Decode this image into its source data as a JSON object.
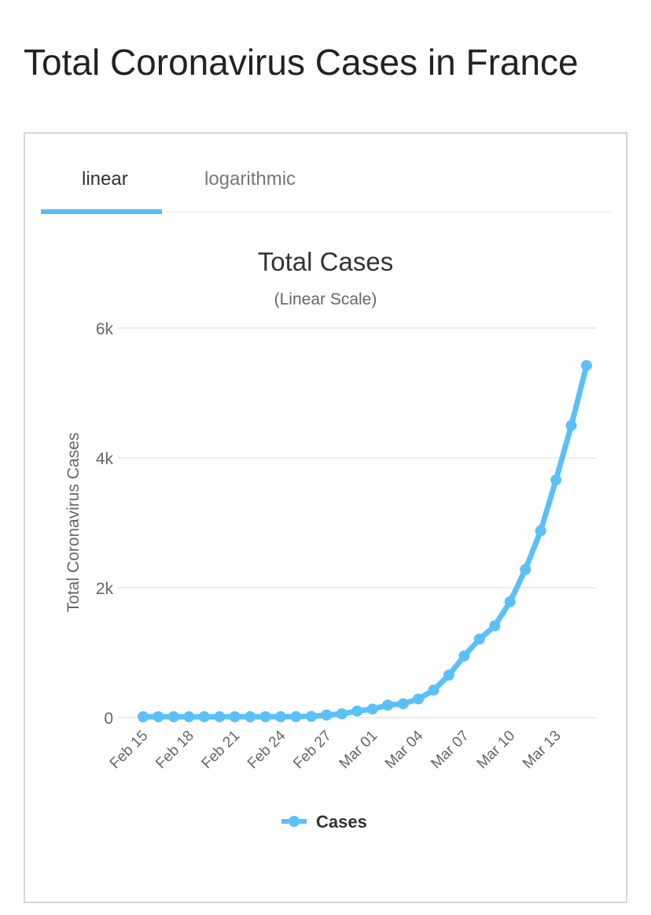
{
  "page": {
    "title": "Total Coronavirus Cases in France"
  },
  "tabs": {
    "linear": "linear",
    "logarithmic": "logarithmic",
    "active": "linear"
  },
  "colors": {
    "series": "#5bc0f8",
    "grid": "#e6e6e6",
    "tab_indicator": "#56bdf5"
  },
  "chart_data": {
    "type": "line",
    "title": "Total Cases",
    "subtitle": "(Linear Scale)",
    "xlabel": "",
    "ylabel": "Total Coronavirus Cases",
    "ylim": [
      0,
      6000
    ],
    "y_ticks": [
      0,
      2000,
      4000,
      6000
    ],
    "y_tick_labels": [
      "0",
      "2k",
      "4k",
      "6k"
    ],
    "x_tick_labels": [
      "Feb 15",
      "Feb 18",
      "Feb 21",
      "Feb 24",
      "Feb 27",
      "Mar 01",
      "Mar 04",
      "Mar 07",
      "Mar 10",
      "Mar 13"
    ],
    "x_tick_every": 3,
    "legend": {
      "position": "bottom-center",
      "label": "Cases"
    },
    "categories": [
      "Feb 15",
      "Feb 16",
      "Feb 17",
      "Feb 18",
      "Feb 19",
      "Feb 20",
      "Feb 21",
      "Feb 22",
      "Feb 23",
      "Feb 24",
      "Feb 25",
      "Feb 26",
      "Feb 27",
      "Feb 28",
      "Feb 29",
      "Mar 01",
      "Mar 02",
      "Mar 03",
      "Mar 04",
      "Mar 05",
      "Mar 06",
      "Mar 07",
      "Mar 08",
      "Mar 09",
      "Mar 10",
      "Mar 11",
      "Mar 12",
      "Mar 13",
      "Mar 14",
      "Mar 15"
    ],
    "series": [
      {
        "name": "Cases",
        "values": [
          12,
          12,
          12,
          12,
          12,
          12,
          12,
          12,
          12,
          12,
          14,
          18,
          38,
          57,
          100,
          130,
          191,
          212,
          285,
          423,
          653,
          949,
          1209,
          1412,
          1784,
          2281,
          2876,
          3661,
          4499,
          5423
        ]
      }
    ]
  }
}
